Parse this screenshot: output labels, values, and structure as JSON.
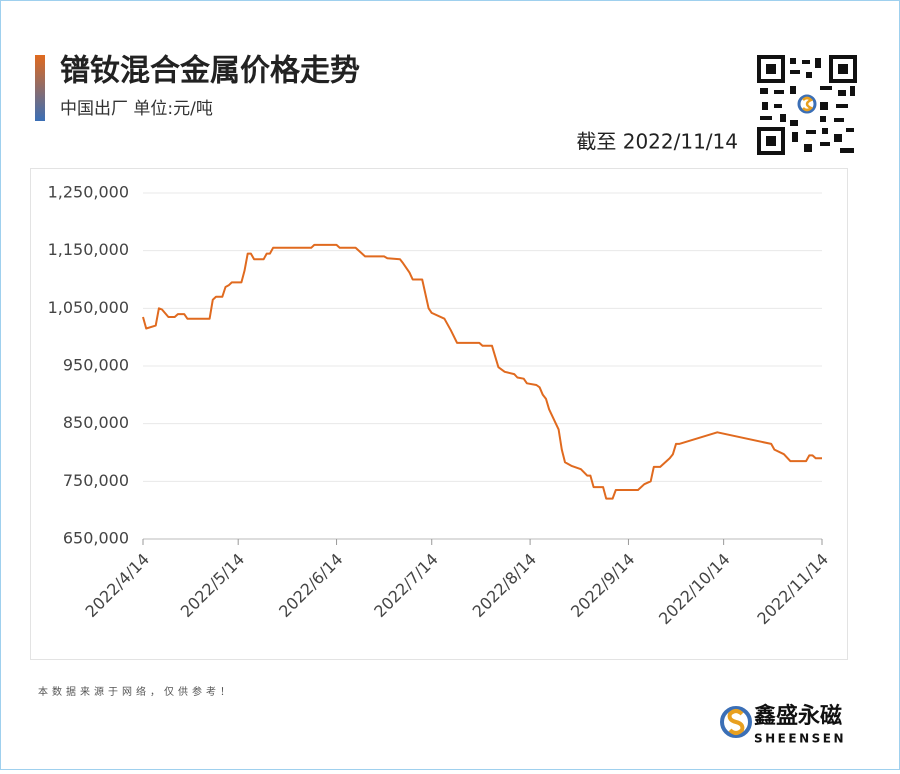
{
  "chart_data": {
    "type": "line",
    "title": "镨钕混合金属价格走势",
    "subtitle": "中国出厂  单位:元/吨",
    "date_note": "截至 2022/11/14",
    "source_note": "本数据来源于网络，仅供参考！",
    "brand": "鑫盛永磁",
    "brand_en": "SHEENSEN",
    "color": "#e06a1f",
    "grid": true,
    "x": [
      "2022/4/14",
      "2022/4/15",
      "2022/4/18",
      "2022/4/19",
      "2022/4/20",
      "2022/4/22",
      "2022/4/24",
      "2022/4/25",
      "2022/4/27",
      "2022/4/28",
      "2022/5/5",
      "2022/5/6",
      "2022/5/7",
      "2022/5/9",
      "2022/5/10",
      "2022/5/11",
      "2022/5/12",
      "2022/5/15",
      "2022/5/16",
      "2022/5/17",
      "2022/5/18",
      "2022/5/19",
      "2022/5/22",
      "2022/5/23",
      "2022/5/24",
      "2022/5/25",
      "2022/6/6",
      "2022/6/7",
      "2022/6/14",
      "2022/6/15",
      "2022/6/20",
      "2022/6/23",
      "2022/6/29",
      "2022/6/30",
      "2022/7/4",
      "2022/7/5",
      "2022/7/7",
      "2022/7/8",
      "2022/7/11",
      "2022/7/13",
      "2022/7/14",
      "2022/7/18",
      "2022/7/20",
      "2022/7/22",
      "2022/7/29",
      "2022/7/30",
      "2022/8/2",
      "2022/8/4",
      "2022/8/6",
      "2022/8/9",
      "2022/8/10",
      "2022/8/12",
      "2022/8/13",
      "2022/8/16",
      "2022/8/17",
      "2022/8/18",
      "2022/8/19",
      "2022/8/20",
      "2022/8/23",
      "2022/8/24",
      "2022/8/25",
      "2022/8/27",
      "2022/8/30",
      "2022/9/1",
      "2022/9/2",
      "2022/9/3",
      "2022/9/6",
      "2022/9/7",
      "2022/9/9",
      "2022/9/10",
      "2022/9/17",
      "2022/9/19",
      "2022/9/21",
      "2022/9/22",
      "2022/9/24",
      "2022/9/27",
      "2022/9/28",
      "2022/9/29",
      "2022/9/30",
      "2022/10/12",
      "2022/10/29",
      "2022/10/30",
      "2022/11/2",
      "2022/11/4",
      "2022/11/9",
      "2022/11/10",
      "2022/11/11",
      "2022/11/12",
      "2022/11/14"
    ],
    "values": [
      1035000,
      1015000,
      1020000,
      1050000,
      1048000,
      1035000,
      1035000,
      1040000,
      1040000,
      1032000,
      1032000,
      1065000,
      1070000,
      1070000,
      1087000,
      1090000,
      1095000,
      1095000,
      1115000,
      1145000,
      1145000,
      1135000,
      1135000,
      1145000,
      1145000,
      1155000,
      1155000,
      1160000,
      1160000,
      1155000,
      1155000,
      1140000,
      1140000,
      1137000,
      1135000,
      1128000,
      1112000,
      1100000,
      1100000,
      1050000,
      1042000,
      1032000,
      1012000,
      990000,
      990000,
      985000,
      985000,
      948000,
      940000,
      936000,
      930000,
      928000,
      920000,
      917000,
      913000,
      900000,
      893000,
      875000,
      840000,
      805000,
      783000,
      777000,
      771000,
      760000,
      760000,
      740000,
      740000,
      720000,
      720000,
      735000,
      735000,
      745000,
      750000,
      775000,
      775000,
      790000,
      797000,
      815000,
      815000,
      835000,
      815000,
      805000,
      797000,
      785000,
      785000,
      795000,
      795000,
      790000,
      790000
    ],
    "xlim": [
      "2022/4/14",
      "2022/11/14"
    ],
    "xticks": [
      "2022/4/14",
      "2022/5/14",
      "2022/6/14",
      "2022/7/14",
      "2022/8/14",
      "2022/9/14",
      "2022/10/14",
      "2022/11/14"
    ],
    "ylim": [
      650000,
      1250000
    ],
    "yticks": [
      {
        "value": 650000,
        "label": "650,000"
      },
      {
        "value": 750000,
        "label": "750,000"
      },
      {
        "value": 850000,
        "label": "850,000"
      },
      {
        "value": 950000,
        "label": "950,000"
      },
      {
        "value": 1050000,
        "label": "1,050,000"
      },
      {
        "value": 1150000,
        "label": "1,150,000"
      },
      {
        "value": 1250000,
        "label": "1,250,000"
      }
    ]
  }
}
